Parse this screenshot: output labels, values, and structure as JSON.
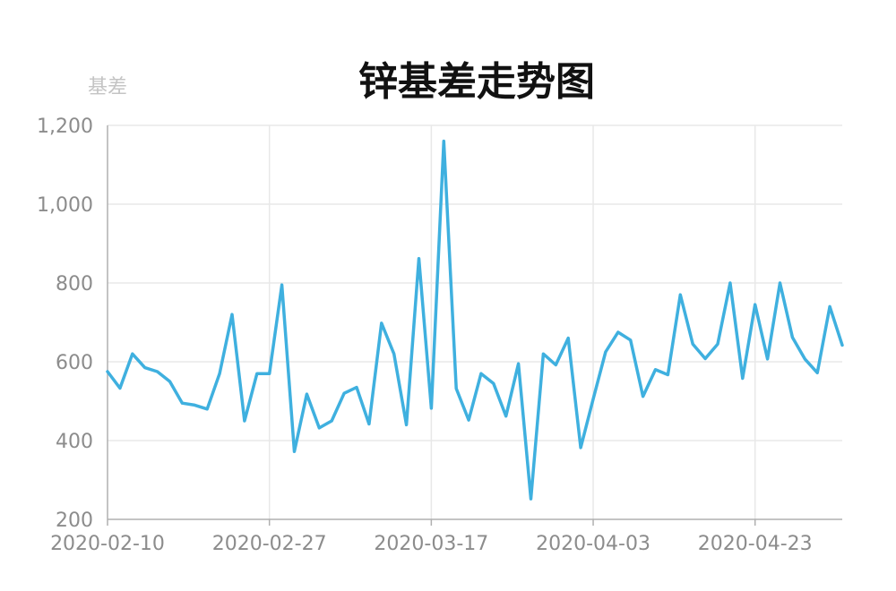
{
  "chart_data": {
    "type": "line",
    "title": "锌基差走势图",
    "ylabel": "基差",
    "xlabel": "",
    "ylim": [
      200,
      1200
    ],
    "yticks": [
      200,
      400,
      600,
      800,
      1000,
      1200
    ],
    "ytick_labels": [
      "200",
      "400",
      "600",
      "800",
      "1,000",
      "1,200"
    ],
    "xtick_labels": [
      "2020-02-10",
      "2020-02-27",
      "2020-03-17",
      "2020-04-03",
      "2020-04-23"
    ],
    "xtick_index": [
      0,
      13,
      26,
      39,
      52
    ],
    "grid": true,
    "series": [
      {
        "color": "#3fb0df",
        "values": [
          575,
          533,
          620,
          585,
          575,
          550,
          495,
          490,
          480,
          570,
          720,
          450,
          570,
          570,
          795,
          372,
          518,
          432,
          450,
          520,
          535,
          442,
          698,
          620,
          440,
          862,
          482,
          1160,
          532,
          452,
          570,
          545,
          462,
          595,
          252,
          620,
          592,
          660,
          382,
          505,
          625,
          675,
          655,
          512,
          580,
          567,
          770,
          645,
          608,
          645,
          800,
          558,
          745,
          607,
          800,
          662,
          607,
          572,
          740,
          642
        ]
      }
    ]
  }
}
